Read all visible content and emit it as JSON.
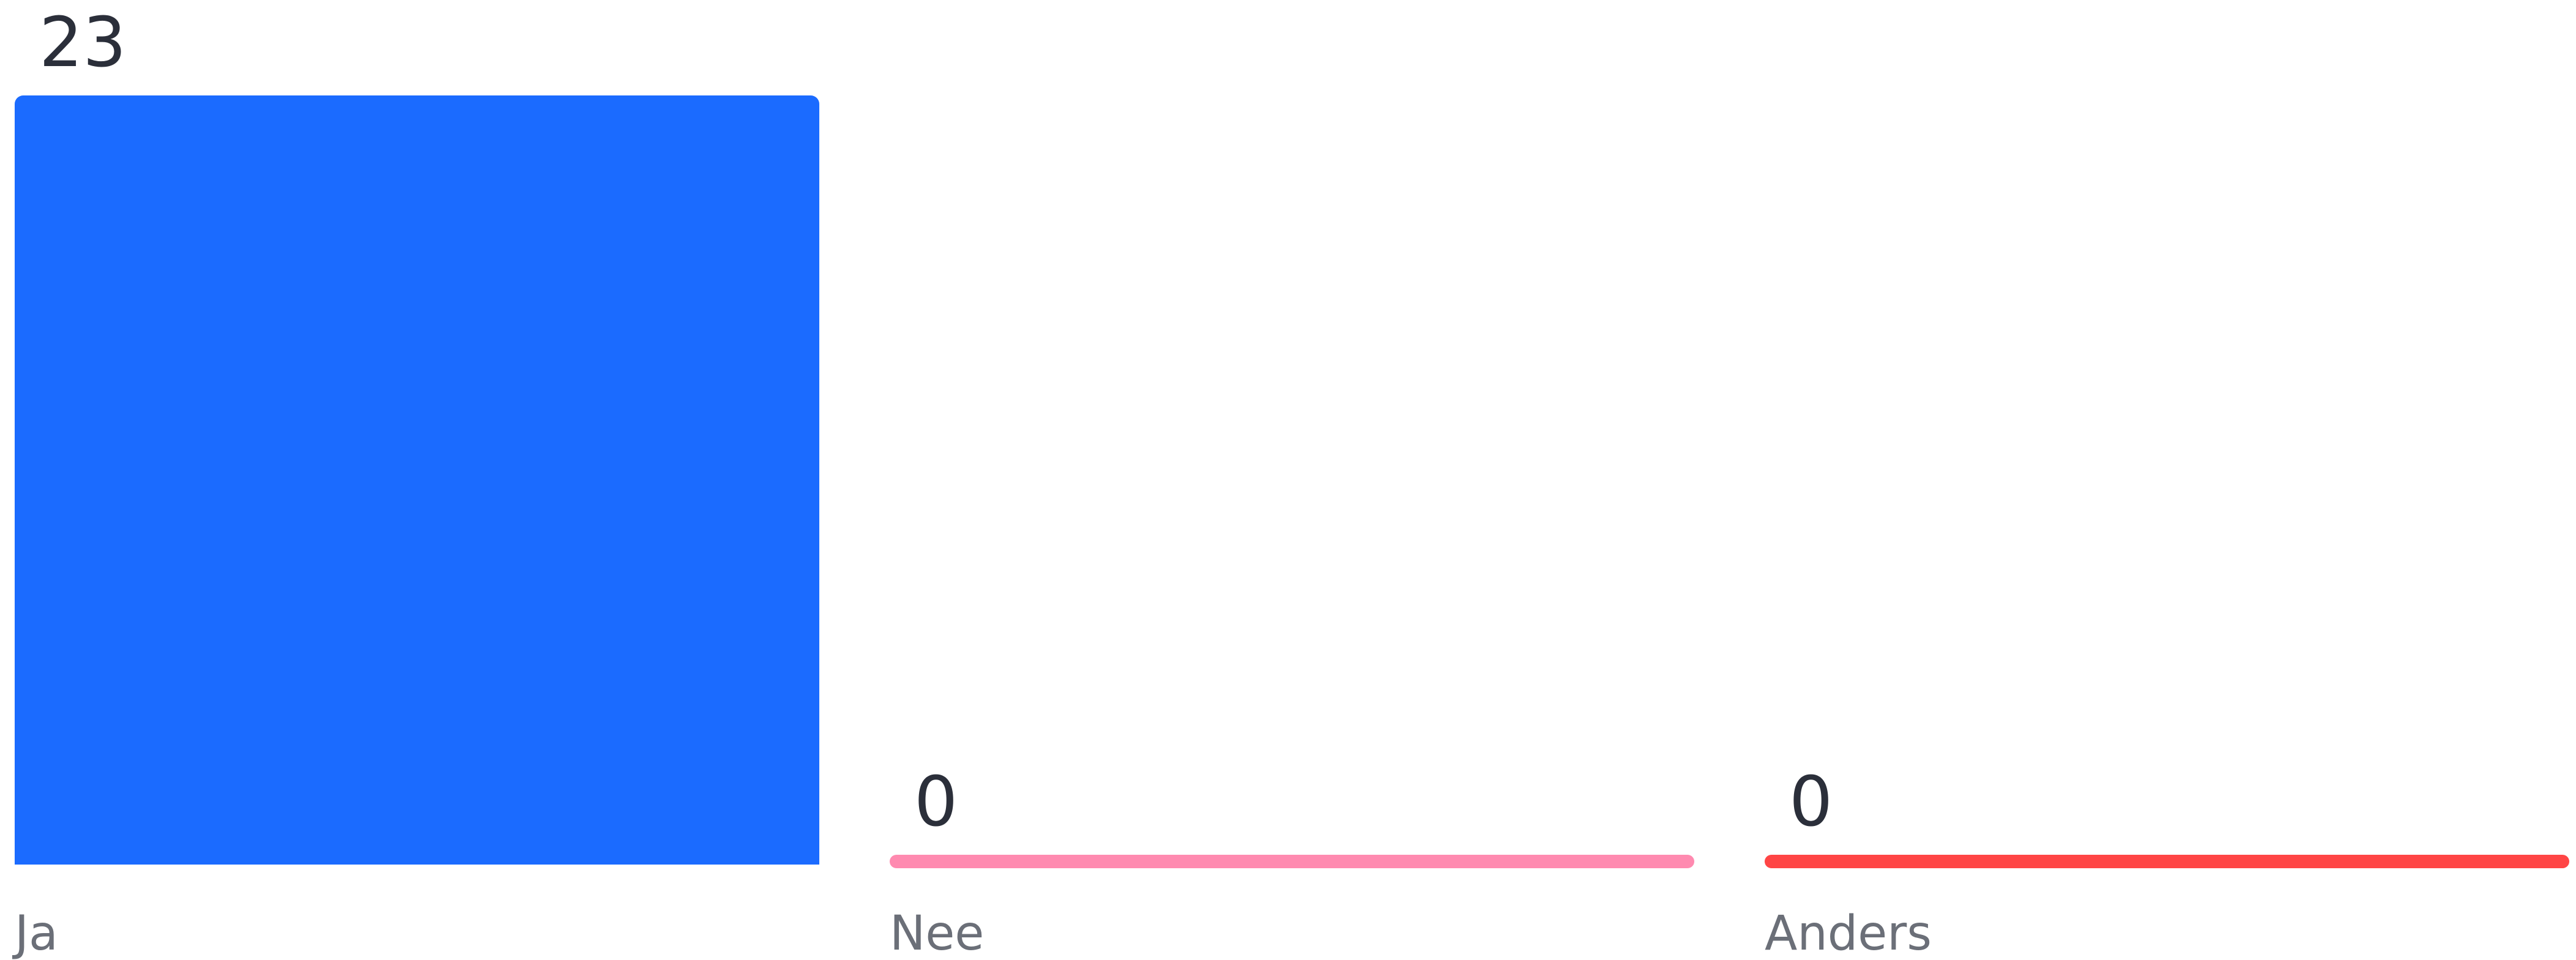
{
  "chart_data": {
    "type": "bar",
    "categories": [
      "Ja",
      "Nee",
      "Anders"
    ],
    "values": [
      23,
      0,
      0
    ],
    "colors": [
      "#1b6bff",
      "#ff8ab0",
      "#ff4545"
    ],
    "title": "",
    "xlabel": "",
    "ylabel": "",
    "ylim": [
      0,
      23
    ],
    "grid": false,
    "legend": "none"
  }
}
